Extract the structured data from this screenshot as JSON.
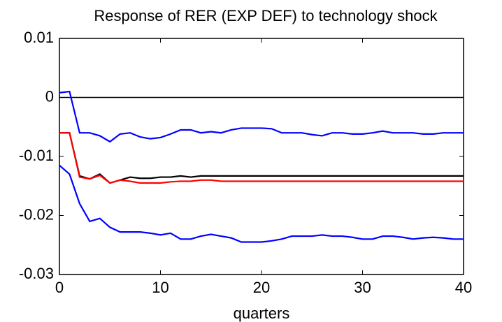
{
  "chart_data": {
    "type": "line",
    "title": "Response of RER (EXP DEF) to technology shock",
    "xlabel": "quarters",
    "x": [
      0,
      1,
      2,
      3,
      4,
      5,
      6,
      7,
      8,
      9,
      10,
      11,
      12,
      13,
      14,
      15,
      16,
      17,
      18,
      19,
      20,
      21,
      22,
      23,
      24,
      25,
      26,
      27,
      28,
      29,
      30,
      31,
      32,
      33,
      34,
      35,
      36,
      37,
      38,
      39,
      40
    ],
    "series": [
      {
        "color": "#0000ff",
        "values": [
          0.0008,
          0.001,
          -0.006,
          -0.006,
          -0.0065,
          -0.0075,
          -0.0062,
          -0.006,
          -0.0067,
          -0.007,
          -0.0068,
          -0.0062,
          -0.0055,
          -0.0055,
          -0.006,
          -0.0058,
          -0.006,
          -0.0055,
          -0.0052,
          -0.0052,
          -0.0052,
          -0.0053,
          -0.006,
          -0.006,
          -0.006,
          -0.0063,
          -0.0065,
          -0.006,
          -0.006,
          -0.0062,
          -0.0062,
          -0.006,
          -0.0057,
          -0.006,
          -0.006,
          -0.006,
          -0.0062,
          -0.0062,
          -0.006,
          -0.006,
          -0.006
        ]
      },
      {
        "color": "#0000ff",
        "values": [
          -0.0115,
          -0.013,
          -0.018,
          -0.021,
          -0.0205,
          -0.022,
          -0.0228,
          -0.0228,
          -0.0228,
          -0.023,
          -0.0233,
          -0.023,
          -0.024,
          -0.024,
          -0.0235,
          -0.0232,
          -0.0235,
          -0.0238,
          -0.0245,
          -0.0245,
          -0.0245,
          -0.0243,
          -0.024,
          -0.0235,
          -0.0235,
          -0.0235,
          -0.0233,
          -0.0235,
          -0.0235,
          -0.0237,
          -0.024,
          -0.024,
          -0.0235,
          -0.0235,
          -0.0237,
          -0.024,
          -0.0238,
          -0.0237,
          -0.0238,
          -0.024,
          -0.024
        ]
      },
      {
        "color": "#000000",
        "values": [
          -0.006,
          -0.006,
          -0.0133,
          -0.0138,
          -0.013,
          -0.0145,
          -0.014,
          -0.0135,
          -0.0137,
          -0.0137,
          -0.0135,
          -0.0135,
          -0.0133,
          -0.0135,
          -0.0133,
          -0.0133,
          -0.0133,
          -0.0133,
          -0.0133,
          -0.0133,
          -0.0133,
          -0.0133,
          -0.0133,
          -0.0133,
          -0.0133,
          -0.0133,
          -0.0133,
          -0.0133,
          -0.0133,
          -0.0133,
          -0.0133,
          -0.0133,
          -0.0133,
          -0.0133,
          -0.0133,
          -0.0133,
          -0.0133,
          -0.0133,
          -0.0133,
          -0.0133,
          -0.0133
        ]
      },
      {
        "color": "#ff0000",
        "values": [
          -0.006,
          -0.006,
          -0.0135,
          -0.0138,
          -0.0132,
          -0.0145,
          -0.014,
          -0.0142,
          -0.0145,
          -0.0145,
          -0.0145,
          -0.0143,
          -0.0142,
          -0.0142,
          -0.014,
          -0.014,
          -0.0142,
          -0.0142,
          -0.0142,
          -0.0142,
          -0.0142,
          -0.0142,
          -0.0142,
          -0.0142,
          -0.0142,
          -0.0142,
          -0.0142,
          -0.0142,
          -0.0142,
          -0.0142,
          -0.0142,
          -0.0142,
          -0.0142,
          -0.0142,
          -0.0142,
          -0.0142,
          -0.0142,
          -0.0142,
          -0.0142,
          -0.0142,
          -0.0142
        ]
      }
    ],
    "xlim": [
      0,
      40
    ],
    "xticks": [
      0,
      10,
      20,
      30,
      40
    ],
    "ylim": [
      -0.03,
      0.01
    ],
    "yticks": [
      -0.03,
      -0.02,
      -0.01,
      0,
      0.01
    ],
    "zero_line": true,
    "grid": false
  }
}
